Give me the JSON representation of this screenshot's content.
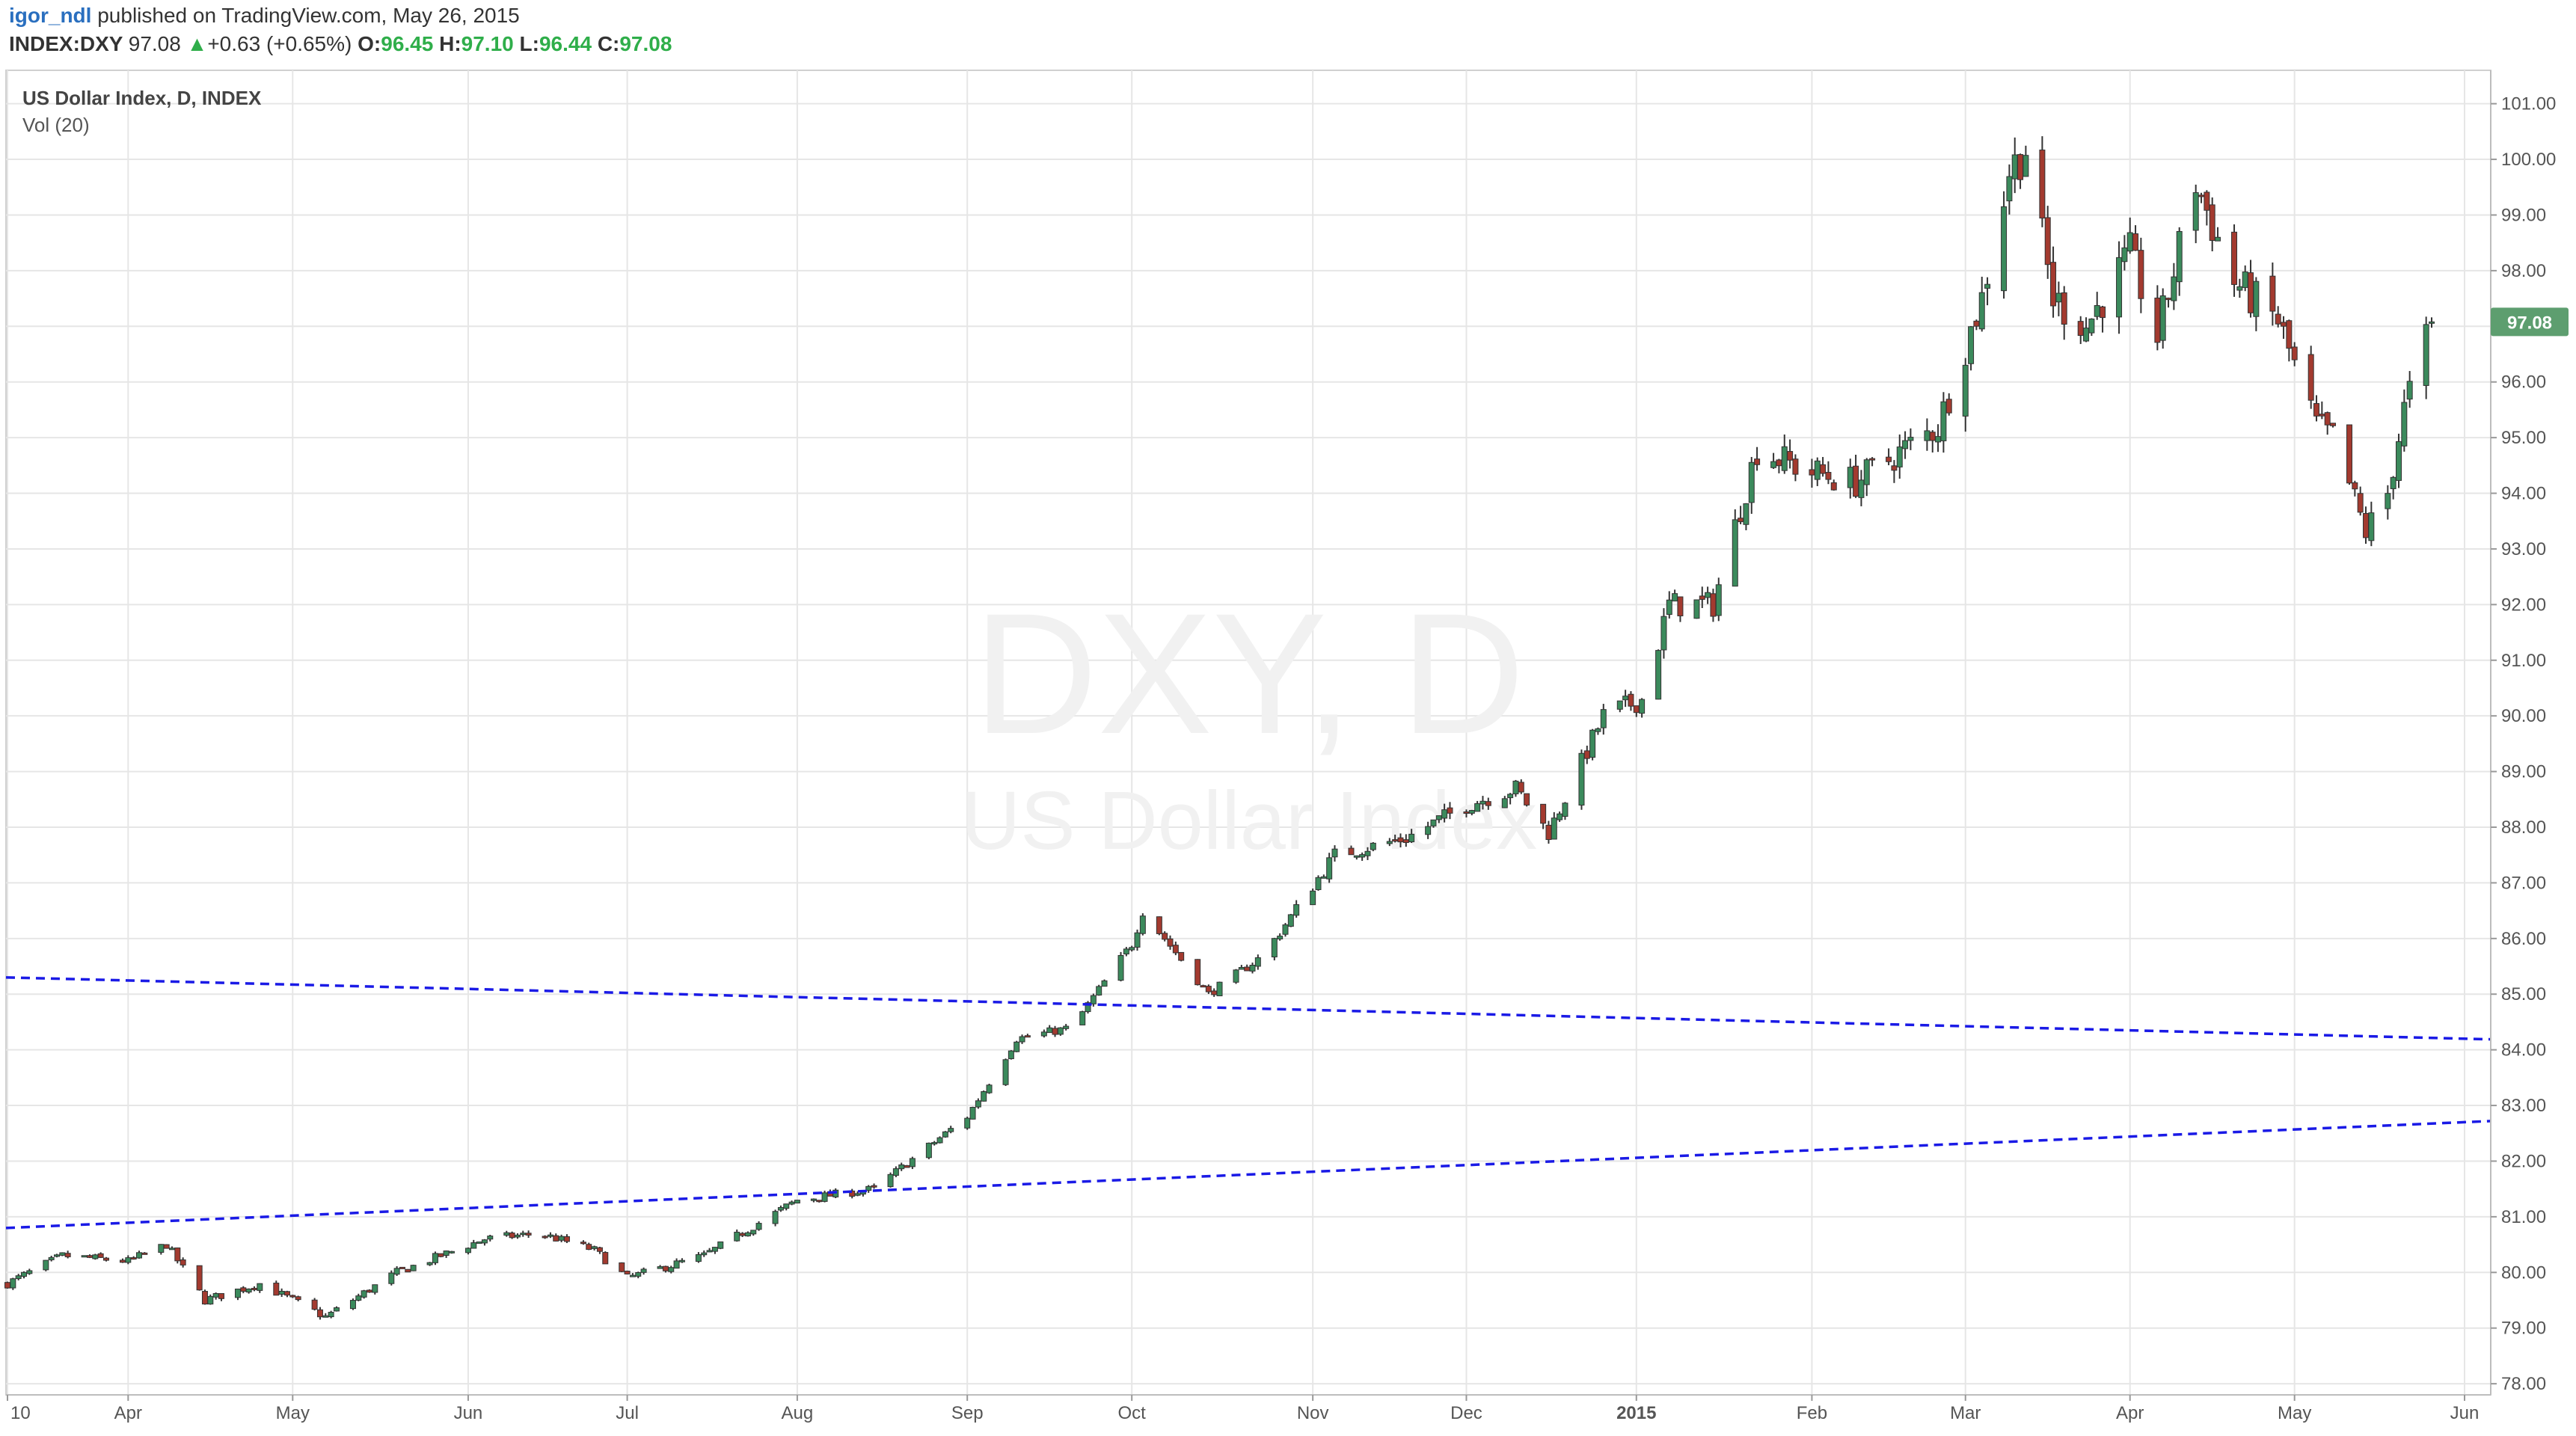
{
  "header": {
    "author": "igor_ndl",
    "published_text": "published on TradingView.com, May 26, 2015",
    "symbol": "INDEX:DXY",
    "last": "97.08",
    "change": "+0.63 (+0.65%)",
    "open_label": "O:",
    "open": "96.45",
    "high_label": "H:",
    "high": "97.10",
    "low_label": "L:",
    "low": "96.44",
    "close_label": "C:",
    "close": "97.08",
    "up_arrow": "▲"
  },
  "chart": {
    "series_title": "US Dollar Index, D, INDEX",
    "volume_label": "Vol (20)",
    "watermark_symbol": "DXY, D",
    "watermark_name": "US Dollar Index",
    "last_price_tag": "97.08"
  },
  "colors": {
    "up": "#3b8a5c",
    "down": "#a33a2f",
    "trendline": "#1a1ae6",
    "last_tag": "#5d9e6f",
    "grid": "#e6e6e6"
  },
  "chart_data": {
    "type": "candlestick",
    "title": "US Dollar Index, D, INDEX",
    "ylim": [
      77.8,
      101.6
    ],
    "y_ticks": [
      "78.00",
      "79.00",
      "80.00",
      "81.00",
      "82.00",
      "83.00",
      "84.00",
      "85.00",
      "86.00",
      "87.00",
      "88.00",
      "89.00",
      "90.00",
      "91.00",
      "92.00",
      "93.00",
      "94.00",
      "95.00",
      "96.00",
      "97.00",
      "98.00",
      "99.00",
      "100.00",
      "101.00"
    ],
    "x_ticks": [
      "10",
      "Apr",
      "May",
      "Jun",
      "Jul",
      "Aug",
      "Sep",
      "Oct",
      "Nov",
      "Dec",
      "2015",
      "Feb",
      "Mar",
      "Apr",
      "May",
      "Jun"
    ],
    "x_tick_dates": [
      "2014-03-10",
      "2014-04-01",
      "2014-05-01",
      "2014-06-02",
      "2014-07-01",
      "2014-08-01",
      "2014-09-01",
      "2014-10-01",
      "2014-11-03",
      "2014-12-01",
      "2015-01-01",
      "2015-02-02",
      "2015-03-02",
      "2015-04-01",
      "2015-05-01",
      "2015-06-01"
    ],
    "close_anchors": [
      {
        "date": "2014-03-10",
        "close": 79.8
      },
      {
        "date": "2014-03-20",
        "close": 80.3
      },
      {
        "date": "2014-04-01",
        "close": 80.2
      },
      {
        "date": "2014-04-08",
        "close": 80.5
      },
      {
        "date": "2014-04-15",
        "close": 79.5
      },
      {
        "date": "2014-04-25",
        "close": 79.8
      },
      {
        "date": "2014-05-07",
        "close": 79.2
      },
      {
        "date": "2014-05-20",
        "close": 80.0
      },
      {
        "date": "2014-06-05",
        "close": 80.6
      },
      {
        "date": "2014-06-15",
        "close": 80.7
      },
      {
        "date": "2014-06-25",
        "close": 80.4
      },
      {
        "date": "2014-07-01",
        "close": 79.9
      },
      {
        "date": "2014-07-15",
        "close": 80.3
      },
      {
        "date": "2014-08-01",
        "close": 81.3
      },
      {
        "date": "2014-08-15",
        "close": 81.5
      },
      {
        "date": "2014-09-01",
        "close": 82.8
      },
      {
        "date": "2014-09-10",
        "close": 84.2
      },
      {
        "date": "2014-09-20",
        "close": 84.4
      },
      {
        "date": "2014-10-01",
        "close": 85.9
      },
      {
        "date": "2014-10-03",
        "close": 86.5
      },
      {
        "date": "2014-10-15",
        "close": 85.0
      },
      {
        "date": "2014-10-25",
        "close": 85.7
      },
      {
        "date": "2014-11-07",
        "close": 87.5
      },
      {
        "date": "2014-11-20",
        "close": 87.8
      },
      {
        "date": "2014-12-01",
        "close": 88.4
      },
      {
        "date": "2014-12-10",
        "close": 88.7
      },
      {
        "date": "2014-12-16",
        "close": 87.9
      },
      {
        "date": "2014-12-26",
        "close": 90.0
      },
      {
        "date": "2015-01-02",
        "close": 90.3
      },
      {
        "date": "2015-01-07",
        "close": 92.0
      },
      {
        "date": "2015-01-15",
        "close": 92.0
      },
      {
        "date": "2015-01-23",
        "close": 94.8
      },
      {
        "date": "2015-02-01",
        "close": 94.4
      },
      {
        "date": "2015-02-10",
        "close": 94.2
      },
      {
        "date": "2015-02-25",
        "close": 95.2
      },
      {
        "date": "2015-03-05",
        "close": 97.5
      },
      {
        "date": "2015-03-10",
        "close": 99.8
      },
      {
        "date": "2015-03-13",
        "close": 100.2
      },
      {
        "date": "2015-03-18",
        "close": 97.5
      },
      {
        "date": "2015-03-24",
        "close": 97.0
      },
      {
        "date": "2015-04-01",
        "close": 98.3
      },
      {
        "date": "2015-04-06",
        "close": 96.8
      },
      {
        "date": "2015-04-13",
        "close": 99.6
      },
      {
        "date": "2015-04-20",
        "close": 97.8
      },
      {
        "date": "2015-04-28",
        "close": 97.1
      },
      {
        "date": "2015-05-05",
        "close": 95.2
      },
      {
        "date": "2015-05-08",
        "close": 95.0
      },
      {
        "date": "2015-05-14",
        "close": 93.3
      },
      {
        "date": "2015-05-18",
        "close": 94.0
      },
      {
        "date": "2015-05-21",
        "close": 95.5
      },
      {
        "date": "2015-05-26",
        "close": 97.08
      }
    ],
    "trendlines": [
      {
        "style": "dashed",
        "start": {
          "date": "2014-03-10",
          "value": 85.3
        },
        "end": {
          "date": "2015-06-01",
          "value": 84.2
        }
      },
      {
        "style": "dashed",
        "start": {
          "date": "2014-03-10",
          "value": 80.8
        },
        "end": {
          "date": "2015-06-01",
          "value": 82.7
        }
      }
    ],
    "last_value": 97.08
  }
}
